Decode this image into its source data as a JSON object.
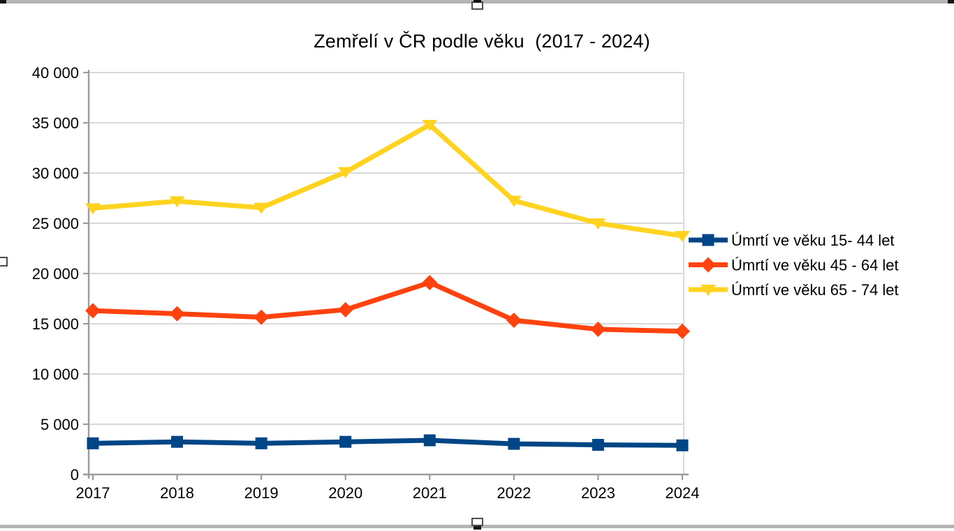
{
  "chart_data": {
    "type": "line",
    "title": "Zemřelí v ČR podle věku  (2017 - 2024)",
    "categories": [
      "2017",
      "2018",
      "2019",
      "2020",
      "2021",
      "2022",
      "2023",
      "2024"
    ],
    "series": [
      {
        "name": "Úmrtí ve věku 15- 44 let",
        "color": "#004586",
        "marker": "square",
        "values": [
          3100,
          3250,
          3100,
          3250,
          3400,
          3050,
          2950,
          2900
        ]
      },
      {
        "name": "Úmrtí ve věku 45 - 64 let",
        "color": "#FF420E",
        "marker": "diamond",
        "values": [
          16300,
          16000,
          15650,
          16400,
          19100,
          15350,
          14450,
          14250
        ]
      },
      {
        "name": "Úmrtí ve věku 65 - 74 let",
        "color": "#FFD320",
        "marker": "triangle-down",
        "values": [
          26500,
          27200,
          26550,
          30100,
          34800,
          27250,
          25000,
          23750
        ]
      }
    ],
    "ylim": [
      0,
      40000
    ],
    "yticks": [
      {
        "v": 0,
        "label": "0"
      },
      {
        "v": 5000,
        "label": "5 000"
      },
      {
        "v": 10000,
        "label": "10 000"
      },
      {
        "v": 15000,
        "label": "15 000"
      },
      {
        "v": 20000,
        "label": "20 000"
      },
      {
        "v": 25000,
        "label": "25 000"
      },
      {
        "v": 30000,
        "label": "30 000"
      },
      {
        "v": 35000,
        "label": "35 000"
      },
      {
        "v": 40000,
        "label": "40 000"
      }
    ],
    "grid": "horizontal-major",
    "legend_position": "right",
    "xlabel": "",
    "ylabel": ""
  }
}
